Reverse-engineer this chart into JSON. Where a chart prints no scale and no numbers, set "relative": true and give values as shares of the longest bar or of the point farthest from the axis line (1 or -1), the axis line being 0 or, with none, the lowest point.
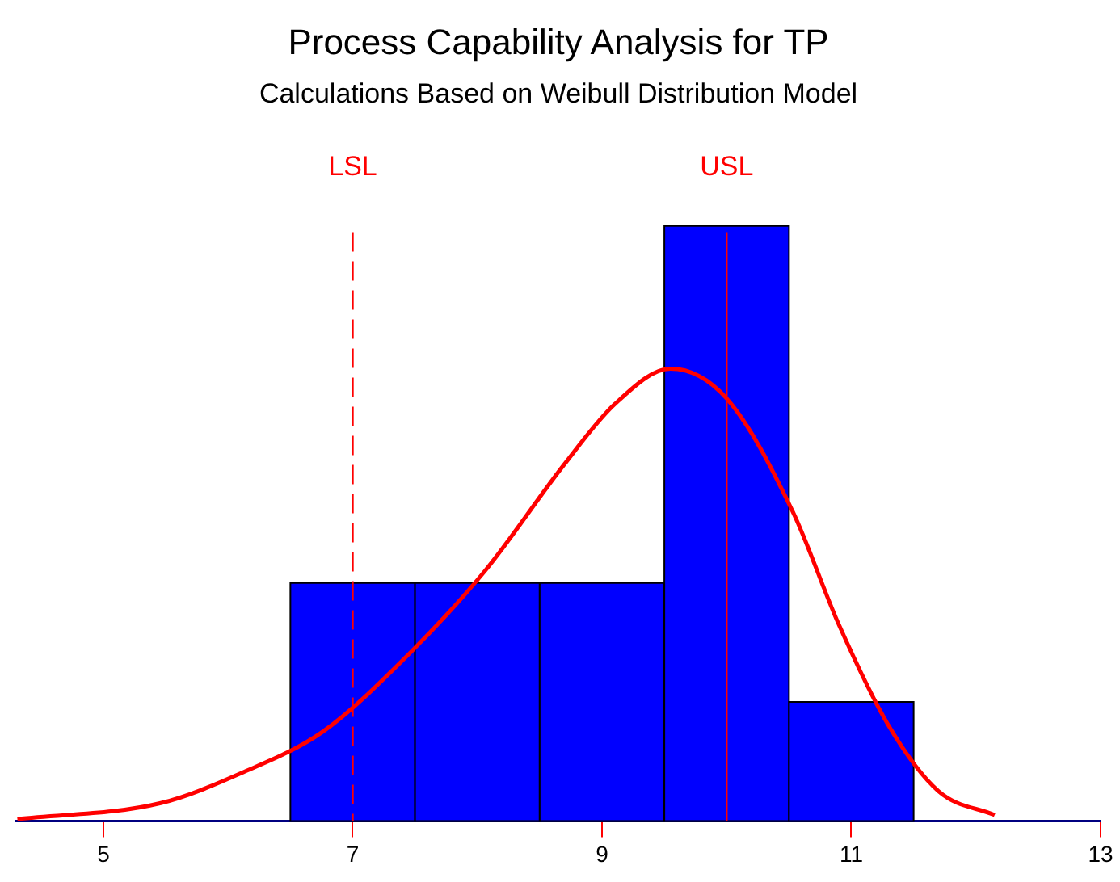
{
  "chart_data": {
    "type": "histogram",
    "title": "Process Capability Analysis for TP",
    "subtitle": "Calculations Based on Weibull Distribution Model",
    "relative": true,
    "bins": [
      6.5,
      7.5,
      8.5,
      9.5,
      10.5,
      11.5
    ],
    "values": [
      0.4,
      0.4,
      0.4,
      1,
      0.2
    ],
    "color": "#0000ff",
    "series": [
      {
        "type": "line",
        "color": "#ff0000",
        "x": [
          4.31,
          5.46,
          6.1,
          6.76,
          7.4,
          8.06,
          8.7,
          9.1,
          9.55,
          10.0,
          10.53,
          10.9,
          11.3,
          11.7,
          12.15
        ],
        "values": [
          0.003,
          0.03,
          0.08,
          0.15,
          0.27,
          0.42,
          0.6,
          0.7,
          0.76,
          0.71,
          0.52,
          0.33,
          0.16,
          0.05,
          0.01
        ]
      }
    ],
    "xlim": [
      4.3,
      13
    ],
    "xticks": [
      5,
      7,
      9,
      11,
      13
    ],
    "grid": false,
    "legend": false,
    "marker": "none",
    "ref_lines": [
      {
        "axis": "x",
        "value": 7,
        "label": "LSL",
        "color": "#ff0000",
        "line_style": "dashed"
      },
      {
        "axis": "x",
        "value": 10,
        "label": "USL",
        "color": "#ff0000",
        "line_style": "solid"
      }
    ]
  }
}
